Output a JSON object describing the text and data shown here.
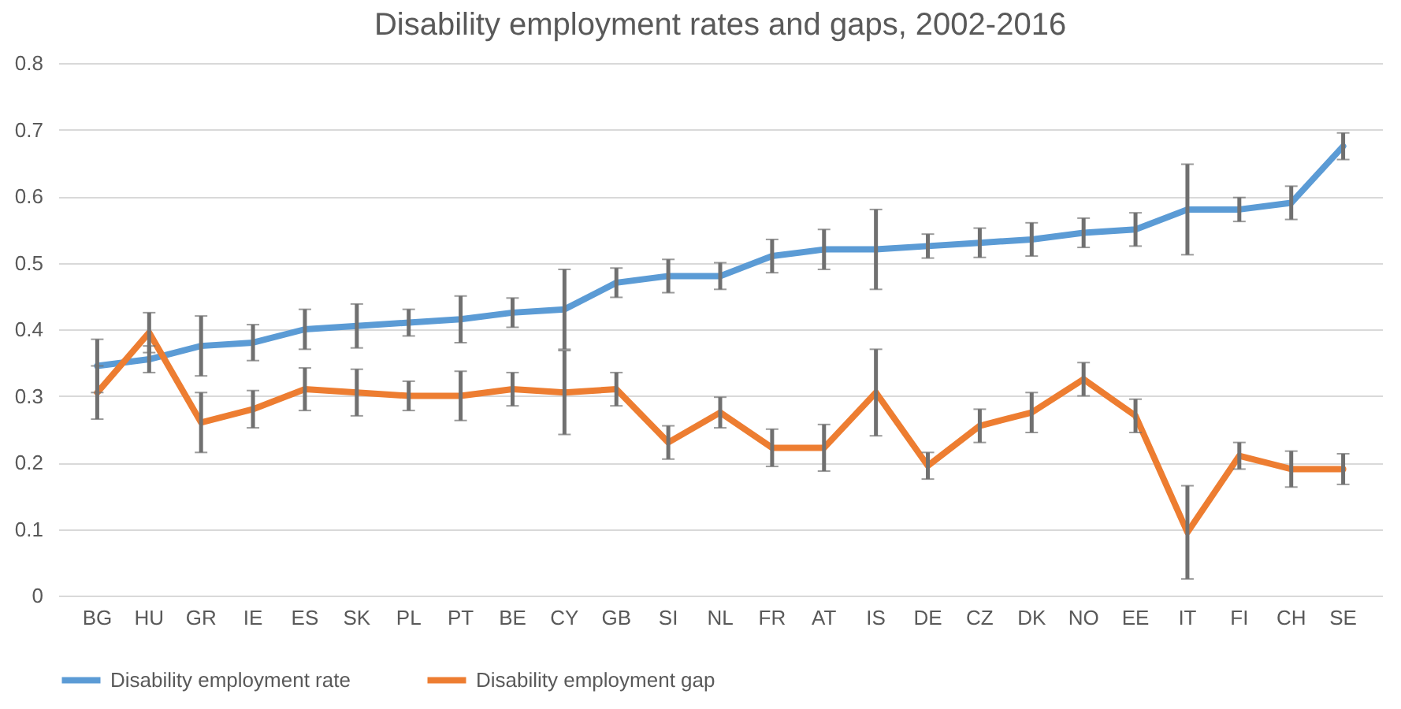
{
  "chart_data": {
    "type": "line",
    "title": "Disability employment rates and gaps, 2002-2016",
    "categories": [
      "BG",
      "HU",
      "GR",
      "IE",
      "ES",
      "SK",
      "PL",
      "PT",
      "BE",
      "CY",
      "GB",
      "SI",
      "NL",
      "FR",
      "AT",
      "IS",
      "DE",
      "CZ",
      "DK",
      "NO",
      "EE",
      "IT",
      "FI",
      "CH",
      "SE"
    ],
    "series": [
      {
        "name": "Disability employment rate",
        "color": "#5b9bd5",
        "values": [
          0.345,
          0.355,
          0.375,
          0.38,
          0.4,
          0.405,
          0.41,
          0.415,
          0.425,
          0.43,
          0.47,
          0.48,
          0.48,
          0.51,
          0.52,
          0.52,
          0.525,
          0.53,
          0.535,
          0.545,
          0.55,
          0.58,
          0.58,
          0.59,
          0.675
        ],
        "errors": [
          0.04,
          0.02,
          0.045,
          0.027,
          0.03,
          0.033,
          0.02,
          0.035,
          0.022,
          0.06,
          0.022,
          0.025,
          0.02,
          0.025,
          0.03,
          0.06,
          0.018,
          0.022,
          0.025,
          0.022,
          0.025,
          0.068,
          0.018,
          0.025,
          0.02
        ]
      },
      {
        "name": "Disability employment gap",
        "color": "#ed7d31",
        "values": [
          0.305,
          0.395,
          0.26,
          0.28,
          0.31,
          0.305,
          0.3,
          0.3,
          0.31,
          0.305,
          0.31,
          0.23,
          0.275,
          0.222,
          0.222,
          0.305,
          0.195,
          0.255,
          0.275,
          0.325,
          0.27,
          0.095,
          0.21,
          0.19,
          0.19
        ],
        "errors": [
          0.04,
          0.03,
          0.045,
          0.028,
          0.032,
          0.035,
          0.022,
          0.037,
          0.025,
          0.063,
          0.025,
          0.025,
          0.023,
          0.028,
          0.035,
          0.065,
          0.02,
          0.025,
          0.03,
          0.025,
          0.025,
          0.07,
          0.02,
          0.027,
          0.023
        ]
      }
    ],
    "ylim": [
      0,
      0.8
    ],
    "yticks": [
      0,
      0.1,
      0.2,
      0.3,
      0.4,
      0.5,
      0.6,
      0.7,
      0.8
    ],
    "grid": "y",
    "legend": "bottom",
    "marker": "none",
    "line_style": "solid"
  }
}
